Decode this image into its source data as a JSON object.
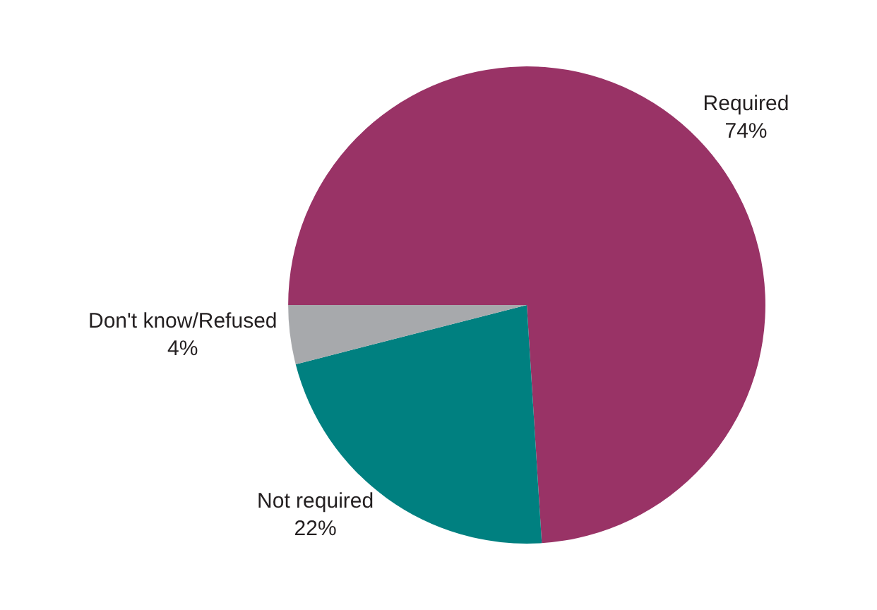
{
  "chart_data": {
    "type": "pie",
    "categories": [
      "Required",
      "Not required",
      "Don't know/Refused"
    ],
    "values": [
      74,
      22,
      4
    ],
    "value_labels": [
      "74%",
      "22%",
      "4%"
    ],
    "colors": [
      "#993366",
      "#008080",
      "#a7a9ac"
    ],
    "legend": false
  }
}
